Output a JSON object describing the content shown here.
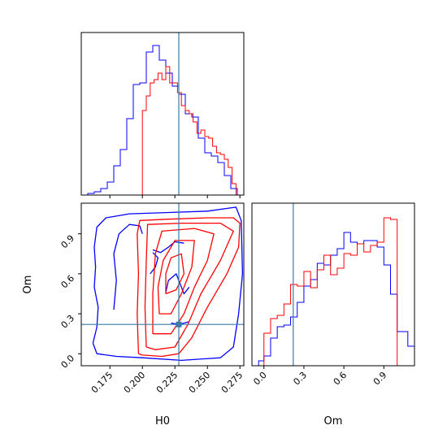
{
  "chart_data": {
    "type": "corner",
    "truth": {
      "H0": 0.228,
      "Om": 0.22
    },
    "truth_color": "#3a7ca5",
    "series": [
      {
        "color": "#0000ff"
      },
      {
        "color": "#ff0000"
      }
    ],
    "axes": {
      "H0": {
        "label": "H0",
        "lim": [
          0.153,
          0.278
        ],
        "ticks": [
          0.175,
          0.2,
          0.225,
          0.25,
          0.275
        ],
        "tick_labels": [
          "0.175",
          "0.200",
          "0.225",
          "0.250",
          "0.275"
        ]
      },
      "Om": {
        "label": "Om",
        "lim": [
          -0.09,
          1.13
        ],
        "ticks": [
          0.0,
          0.3,
          0.6,
          0.9
        ],
        "tick_labels": [
          "0.0",
          "0.3",
          "0.6",
          "0.9"
        ]
      }
    },
    "hist_H0": {
      "bin_edges": [
        0.153,
        0.158,
        0.163,
        0.168,
        0.173,
        0.178,
        0.183,
        0.188,
        0.193,
        0.198,
        0.203,
        0.208,
        0.213,
        0.218,
        0.223,
        0.228,
        0.233,
        0.238,
        0.243,
        0.248,
        0.253,
        0.258,
        0.263,
        0.268,
        0.273,
        0.278
      ],
      "blue": [
        0,
        0.01,
        0.02,
        0.04,
        0.08,
        0.18,
        0.28,
        0.47,
        0.68,
        0.69,
        0.88,
        0.92,
        0.83,
        0.75,
        0.67,
        0.62,
        0.5,
        0.48,
        0.35,
        0.26,
        0.24,
        0.2,
        0.12,
        0.04,
        0
      ],
      "red_bins": [
        [
          0.2,
          0.203,
          0.52
        ],
        [
          0.203,
          0.206,
          0.61
        ],
        [
          0.206,
          0.209,
          0.69
        ],
        [
          0.209,
          0.212,
          0.71
        ],
        [
          0.212,
          0.215,
          0.75
        ],
        [
          0.215,
          0.218,
          0.71
        ],
        [
          0.218,
          0.221,
          0.79
        ],
        [
          0.221,
          0.224,
          0.69
        ],
        [
          0.224,
          0.227,
          0.69
        ],
        [
          0.227,
          0.23,
          0.63
        ],
        [
          0.23,
          0.233,
          0.55
        ],
        [
          0.233,
          0.236,
          0.52
        ],
        [
          0.236,
          0.239,
          0.5
        ],
        [
          0.239,
          0.242,
          0.45
        ],
        [
          0.242,
          0.245,
          0.38
        ],
        [
          0.245,
          0.248,
          0.4
        ],
        [
          0.248,
          0.251,
          0.36
        ],
        [
          0.251,
          0.254,
          0.35
        ],
        [
          0.254,
          0.257,
          0.3
        ],
        [
          0.257,
          0.26,
          0.26
        ],
        [
          0.26,
          0.263,
          0.25
        ],
        [
          0.263,
          0.266,
          0.22
        ],
        [
          0.266,
          0.269,
          0.17
        ],
        [
          0.269,
          0.272,
          0.07
        ]
      ]
    },
    "hist_Om": {
      "blue_bins": [
        [
          -0.09,
          -0.04,
          0.0
        ],
        [
          -0.04,
          0.0,
          0.03
        ],
        [
          0.0,
          0.05,
          0.06
        ],
        [
          0.05,
          0.1,
          0.17
        ],
        [
          0.1,
          0.15,
          0.24
        ],
        [
          0.15,
          0.2,
          0.25
        ],
        [
          0.2,
          0.25,
          0.3
        ],
        [
          0.25,
          0.3,
          0.39
        ],
        [
          0.3,
          0.35,
          0.49
        ],
        [
          0.35,
          0.4,
          0.53
        ],
        [
          0.4,
          0.45,
          0.63
        ],
        [
          0.45,
          0.5,
          0.62
        ],
        [
          0.5,
          0.55,
          0.68
        ],
        [
          0.55,
          0.6,
          0.72
        ],
        [
          0.6,
          0.65,
          0.82
        ],
        [
          0.65,
          0.7,
          0.76
        ],
        [
          0.7,
          0.75,
          0.75
        ],
        [
          0.75,
          0.8,
          0.77
        ],
        [
          0.8,
          0.85,
          0.77
        ],
        [
          0.85,
          0.9,
          0.73
        ],
        [
          0.9,
          0.95,
          0.62
        ],
        [
          0.95,
          1.0,
          0.44
        ],
        [
          1.0,
          1.08,
          0.21
        ],
        [
          1.08,
          1.13,
          0.12
        ]
      ],
      "red_bins": [
        [
          0.0,
          0.05,
          0.2
        ],
        [
          0.05,
          0.1,
          0.29
        ],
        [
          0.1,
          0.15,
          0.31
        ],
        [
          0.15,
          0.2,
          0.38
        ],
        [
          0.2,
          0.25,
          0.5
        ],
        [
          0.25,
          0.3,
          0.49
        ],
        [
          0.3,
          0.35,
          0.58
        ],
        [
          0.35,
          0.4,
          0.48
        ],
        [
          0.4,
          0.45,
          0.59
        ],
        [
          0.45,
          0.5,
          0.68
        ],
        [
          0.5,
          0.55,
          0.56
        ],
        [
          0.55,
          0.6,
          0.6
        ],
        [
          0.6,
          0.65,
          0.69
        ],
        [
          0.65,
          0.7,
          0.68
        ],
        [
          0.7,
          0.75,
          0.75
        ],
        [
          0.75,
          0.8,
          0.7
        ],
        [
          0.8,
          0.85,
          0.74
        ],
        [
          0.85,
          0.9,
          0.76
        ],
        [
          0.9,
          0.95,
          0.91
        ],
        [
          0.95,
          1.0,
          0.9
        ]
      ]
    },
    "contours_2d": {
      "blue": [
        [
          [
            0.162,
            0.08
          ],
          [
            0.165,
            0.2
          ],
          [
            0.166,
            0.35
          ],
          [
            0.163,
            0.5
          ],
          [
            0.164,
            0.65
          ],
          [
            0.163,
            0.8
          ],
          [
            0.165,
            0.95
          ],
          [
            0.172,
            1.02
          ],
          [
            0.19,
            1.05
          ],
          [
            0.22,
            1.06
          ],
          [
            0.25,
            1.07
          ],
          [
            0.272,
            1.1
          ],
          [
            0.276,
            1.0
          ],
          [
            0.277,
            0.6
          ],
          [
            0.274,
            0.3
          ],
          [
            0.27,
            0.05
          ],
          [
            0.26,
            -0.03
          ],
          [
            0.23,
            -0.05
          ],
          [
            0.2,
            -0.03
          ],
          [
            0.18,
            -0.02
          ],
          [
            0.165,
            0.0
          ],
          [
            0.162,
            0.08
          ]
        ],
        [
          [
            0.178,
            0.33
          ],
          [
            0.18,
            0.55
          ],
          [
            0.178,
            0.75
          ],
          [
            0.182,
            0.9
          ],
          [
            0.19,
            0.97
          ],
          [
            0.198,
            0.96
          ],
          [
            0.2,
            0.9
          ]
        ],
        [
          [
            0.208,
            0.78
          ],
          [
            0.214,
            0.76
          ],
          [
            0.22,
            0.8
          ],
          [
            0.225,
            0.84
          ],
          [
            0.232,
            0.83
          ]
        ],
        [
          [
            0.206,
            0.6
          ],
          [
            0.21,
            0.65
          ],
          [
            0.212,
            0.72
          ],
          [
            0.208,
            0.76
          ]
        ],
        [
          [
            0.218,
            0.46
          ],
          [
            0.22,
            0.55
          ],
          [
            0.226,
            0.6
          ],
          [
            0.23,
            0.5
          ],
          [
            0.232,
            0.45
          ],
          [
            0.236,
            0.5
          ]
        ],
        [
          [
            0.222,
            0.23
          ],
          [
            0.228,
            0.22
          ],
          [
            0.236,
            0.24
          ]
        ]
      ],
      "red": [
        [
          [
            0.197,
            0.0
          ],
          [
            0.196,
            0.3
          ],
          [
            0.197,
            0.6
          ],
          [
            0.196,
            0.9
          ],
          [
            0.198,
            1.0
          ],
          [
            0.22,
            1.01
          ],
          [
            0.25,
            1.02
          ],
          [
            0.27,
            1.02
          ],
          [
            0.275,
            0.98
          ],
          [
            0.274,
            0.8
          ],
          [
            0.265,
            0.6
          ],
          [
            0.25,
            0.35
          ],
          [
            0.238,
            0.12
          ],
          [
            0.228,
            0.0
          ],
          [
            0.215,
            -0.02
          ],
          [
            0.2,
            -0.01
          ],
          [
            0.197,
            0.0
          ]
        ],
        [
          [
            0.203,
            0.05
          ],
          [
            0.202,
            0.35
          ],
          [
            0.203,
            0.7
          ],
          [
            0.204,
            0.97
          ],
          [
            0.23,
            0.98
          ],
          [
            0.26,
            0.98
          ],
          [
            0.27,
            0.92
          ],
          [
            0.26,
            0.7
          ],
          [
            0.245,
            0.45
          ],
          [
            0.235,
            0.22
          ],
          [
            0.225,
            0.05
          ],
          [
            0.21,
            0.03
          ],
          [
            0.203,
            0.05
          ]
        ],
        [
          [
            0.208,
            0.15
          ],
          [
            0.208,
            0.45
          ],
          [
            0.21,
            0.75
          ],
          [
            0.215,
            0.92
          ],
          [
            0.24,
            0.94
          ],
          [
            0.255,
            0.9
          ],
          [
            0.25,
            0.7
          ],
          [
            0.24,
            0.5
          ],
          [
            0.232,
            0.3
          ],
          [
            0.222,
            0.15
          ],
          [
            0.208,
            0.15
          ]
        ],
        [
          [
            0.213,
            0.3
          ],
          [
            0.212,
            0.5
          ],
          [
            0.216,
            0.7
          ],
          [
            0.225,
            0.85
          ],
          [
            0.24,
            0.85
          ],
          [
            0.238,
            0.65
          ],
          [
            0.23,
            0.45
          ],
          [
            0.222,
            0.3
          ],
          [
            0.213,
            0.3
          ]
        ],
        [
          [
            0.218,
            0.45
          ],
          [
            0.218,
            0.6
          ],
          [
            0.222,
            0.72
          ],
          [
            0.23,
            0.75
          ],
          [
            0.232,
            0.6
          ],
          [
            0.226,
            0.48
          ],
          [
            0.218,
            0.45
          ]
        ]
      ]
    }
  }
}
